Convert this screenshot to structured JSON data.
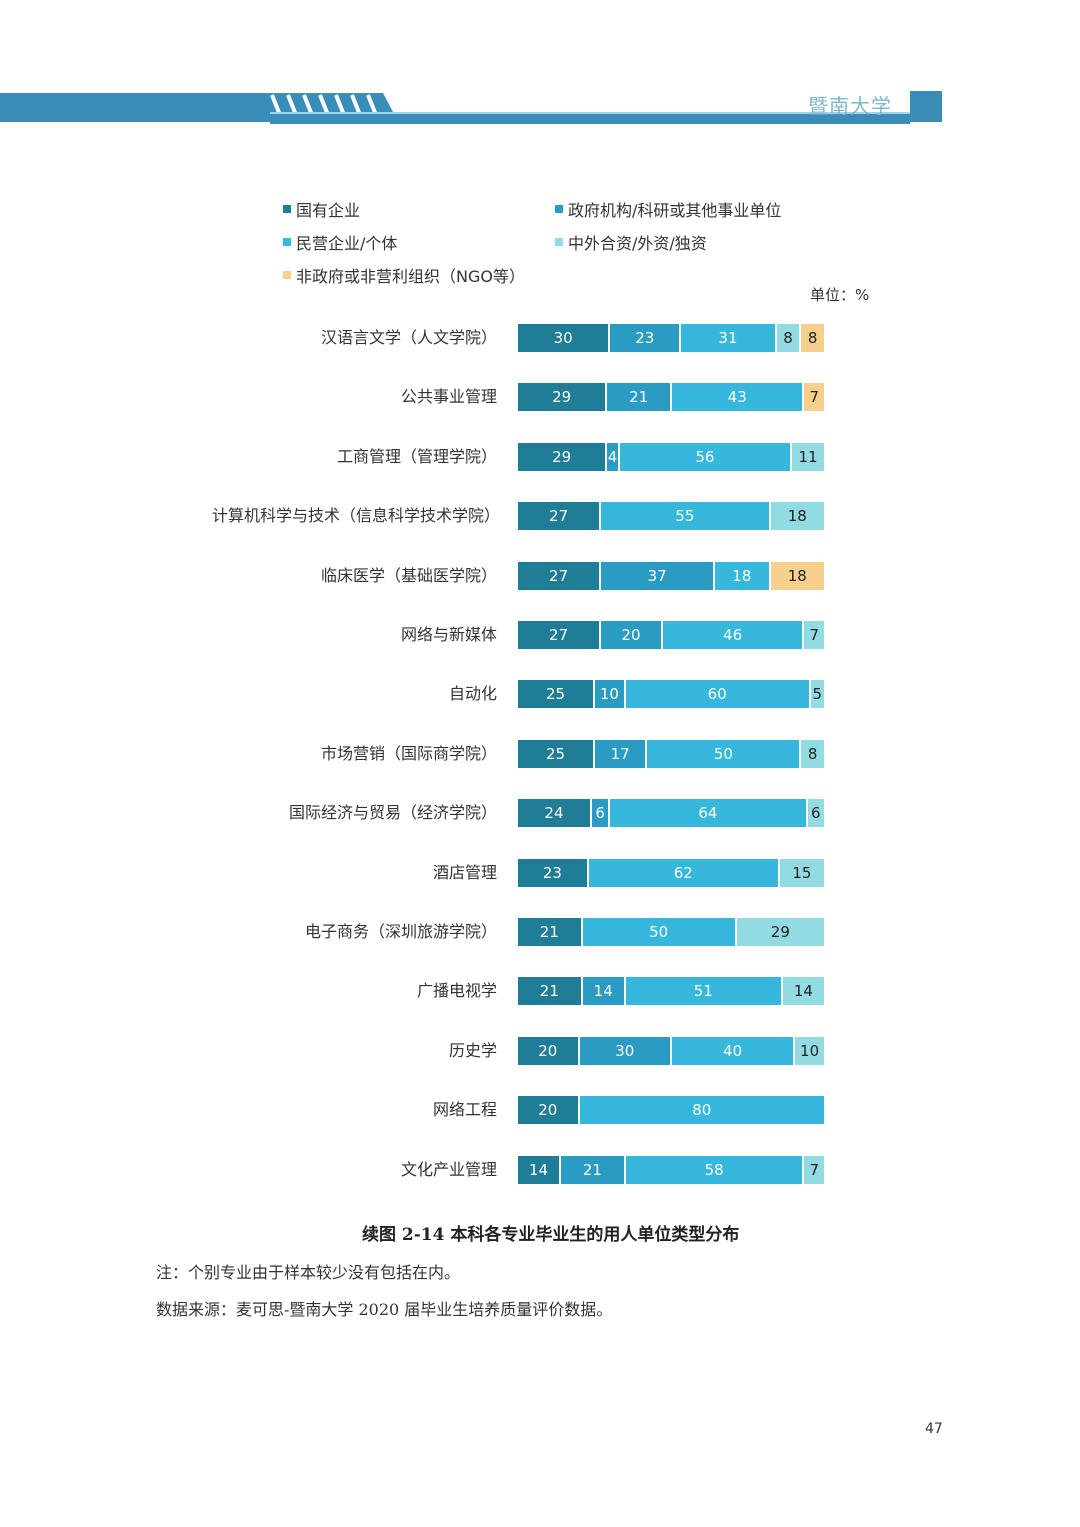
{
  "header": {
    "title": "暨南大学"
  },
  "chart_data": {
    "type": "bar",
    "orientation": "horizontal-stacked-100",
    "unit_label": "单位：%",
    "series": [
      {
        "name": "国有企业",
        "color": "#1f7d98"
      },
      {
        "name": "政府机构/科研或其他事业单位",
        "color": "#2a9cc4"
      },
      {
        "name": "民营企业/个体",
        "color": "#36b7dc"
      },
      {
        "name": "中外合资/外资/独资",
        "color": "#92dbe3"
      },
      {
        "name": "非政府或非营利组织（NGO等）",
        "color": "#f8d08e"
      }
    ],
    "categories": [
      "汉语言文学（人文学院）",
      "公共事业管理",
      "工商管理（管理学院）",
      "计算机科学与技术（信息科学技术学院）",
      "临床医学（基础医学院）",
      "网络与新媒体",
      "自动化",
      "市场营销（国际商学院）",
      "国际经济与贸易（经济学院）",
      "酒店管理",
      "电子商务（深圳旅游学院）",
      "广播电视学",
      "历史学",
      "网络工程",
      "文化产业管理"
    ],
    "values": [
      [
        30,
        23,
        31,
        8,
        8
      ],
      [
        29,
        21,
        43,
        0,
        7
      ],
      [
        29,
        4,
        56,
        11,
        0
      ],
      [
        27,
        0,
        55,
        18,
        0
      ],
      [
        27,
        37,
        18,
        0,
        18
      ],
      [
        27,
        20,
        46,
        7,
        0
      ],
      [
        25,
        10,
        60,
        5,
        0
      ],
      [
        25,
        17,
        50,
        8,
        0
      ],
      [
        24,
        6,
        64,
        6,
        0
      ],
      [
        23,
        0,
        62,
        15,
        0
      ],
      [
        21,
        0,
        50,
        29,
        0
      ],
      [
        21,
        14,
        51,
        14,
        0
      ],
      [
        20,
        30,
        40,
        10,
        0
      ],
      [
        20,
        0,
        80,
        0,
        0
      ],
      [
        14,
        21,
        58,
        7,
        0
      ]
    ],
    "xlim": [
      0,
      100
    ],
    "legend_position": "top"
  },
  "caption": "续图 2-14  本科各专业毕业生的用人单位类型分布",
  "note": "注：个别专业由于样本较少没有包括在内。",
  "source": "数据来源：麦可思-暨南大学 2020 届毕业生培养质量评价数据。",
  "page_number": "47"
}
